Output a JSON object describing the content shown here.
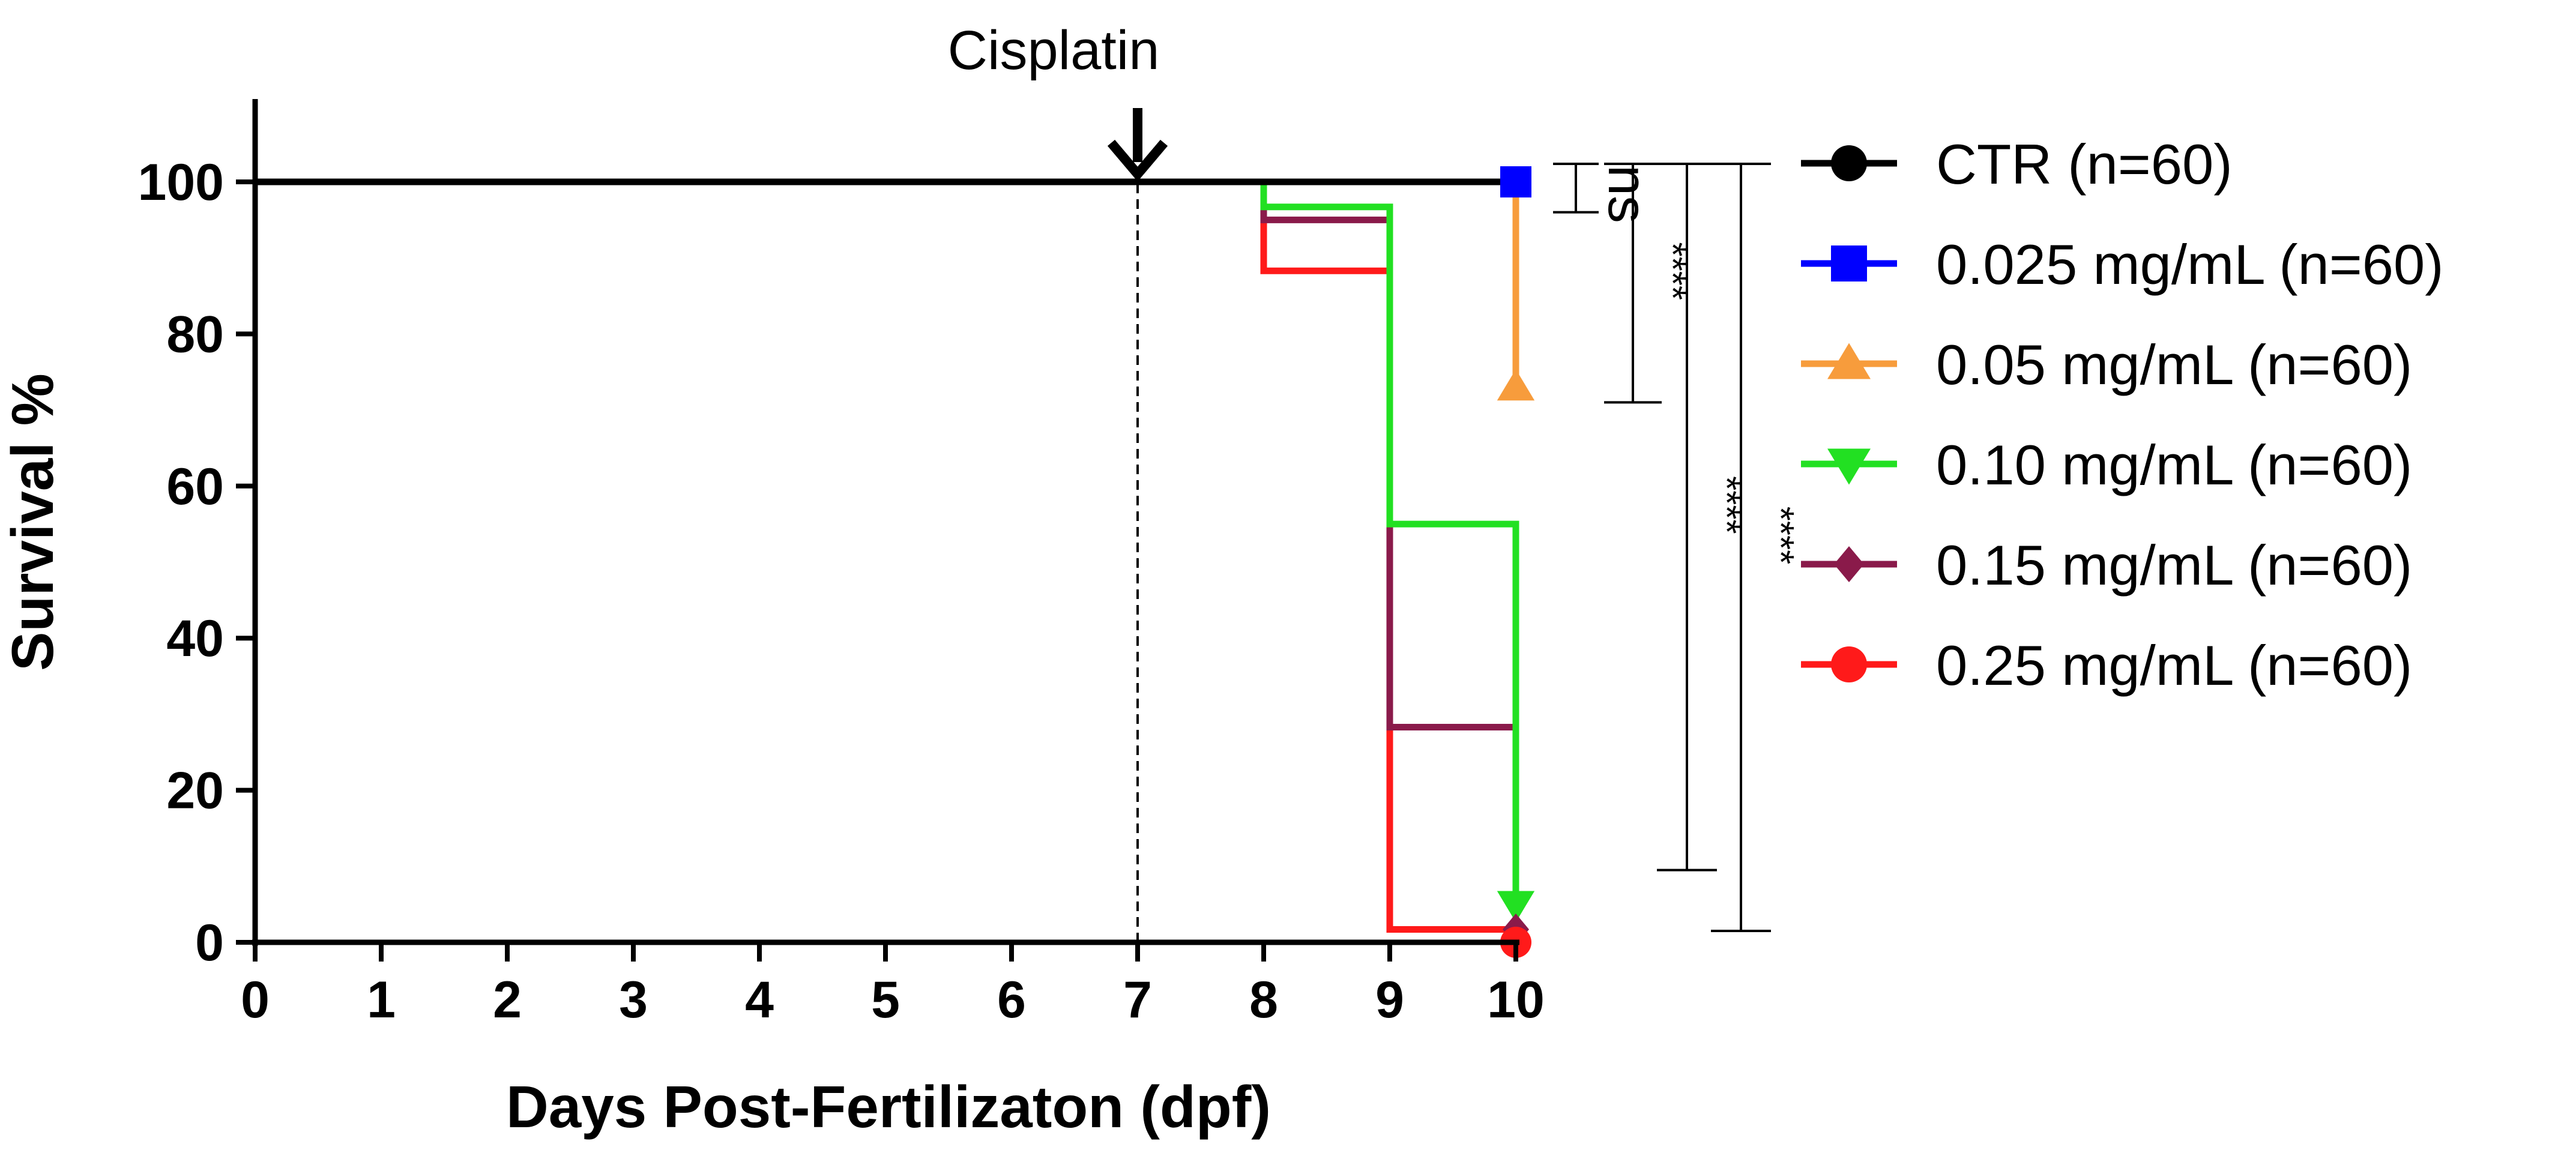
{
  "chart_data": {
    "type": "line",
    "subtype": "kaplan-meier-survival",
    "xlabel": "Days Post-Fertilizaton (dpf)",
    "ylabel": "Survival %",
    "xlim": [
      0,
      10
    ],
    "ylim": [
      0,
      110
    ],
    "xticks": [
      0,
      1,
      2,
      3,
      4,
      5,
      6,
      7,
      8,
      9,
      10
    ],
    "yticks": [
      0,
      20,
      40,
      60,
      80,
      100
    ],
    "event": {
      "label": "Cisplatin",
      "x": 7
    },
    "series": [
      {
        "name": "CTR (n=60)",
        "color": "#000000",
        "marker": "circle",
        "steps": [
          [
            0,
            100
          ],
          [
            10,
            100
          ]
        ]
      },
      {
        "name": "0.025 mg/mL (n=60)",
        "color": "#0000ff",
        "marker": "square",
        "steps": [
          [
            0,
            100
          ],
          [
            10,
            100
          ]
        ]
      },
      {
        "name": "0.05 mg/mL (n=60)",
        "color": "#f79c3c",
        "marker": "triangle-up",
        "steps": [
          [
            0,
            100
          ],
          [
            10,
            100
          ],
          [
            10,
            73
          ]
        ]
      },
      {
        "name": "0.10 mg/mL (n=60)",
        "color": "#22e022",
        "marker": "triangle-down",
        "steps": [
          [
            0,
            100
          ],
          [
            8,
            100
          ],
          [
            8,
            96.7
          ],
          [
            9,
            96.7
          ],
          [
            9,
            55
          ],
          [
            10,
            55
          ],
          [
            10,
            5
          ]
        ]
      },
      {
        "name": "0.15 mg/mL (n=60)",
        "color": "#8a1a4a",
        "marker": "diamond",
        "steps": [
          [
            0,
            100
          ],
          [
            8,
            100
          ],
          [
            8,
            95
          ],
          [
            9,
            95
          ],
          [
            9,
            28.3
          ],
          [
            10,
            28.3
          ],
          [
            10,
            1.7
          ]
        ]
      },
      {
        "name": "0.25 mg/mL (n=60)",
        "color": "#ff1a1a",
        "marker": "circle",
        "steps": [
          [
            0,
            100
          ],
          [
            8,
            100
          ],
          [
            8,
            88.3
          ],
          [
            9,
            88.3
          ],
          [
            9,
            1.7
          ],
          [
            10,
            1.7
          ],
          [
            10,
            0
          ]
        ]
      }
    ],
    "significance": [
      {
        "label": "ns",
        "from": 100,
        "to": 96
      },
      {
        "label": "****",
        "from": 100,
        "to": 71
      },
      {
        "label": "****",
        "from": 100,
        "to": 9.5
      },
      {
        "label": "****",
        "from": 100,
        "to": 1.5
      }
    ],
    "legend_position": "right"
  }
}
